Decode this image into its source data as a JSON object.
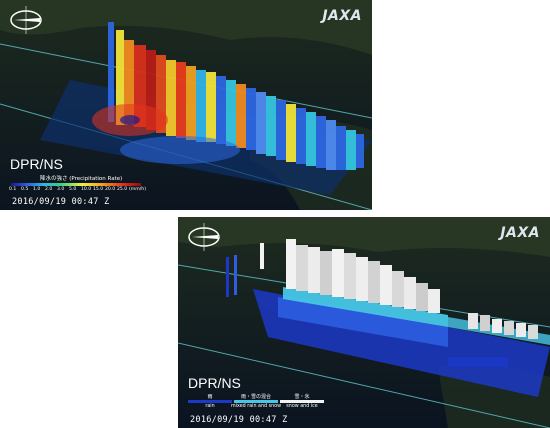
{
  "panels": [
    {
      "product": "DPR/NS",
      "legend_title": "降水の強さ (Precipitation Rate)",
      "ticks": [
        "0.1",
        "0.5",
        "1.0",
        "2.0",
        "3.0",
        "5.0",
        "10.0",
        "15.0",
        "20.0",
        "25.0",
        "(mm/h)"
      ],
      "timestamp": "2016/09/19 00:47 Z",
      "logo": "JAXA"
    },
    {
      "product": "DPR/NS",
      "categories": [
        {
          "top": "雨",
          "bottom": "rain",
          "color": "#1c38c8"
        },
        {
          "top": "雨・雪の混合",
          "bottom": "mixed rain and snow",
          "color": "#47c7e8"
        },
        {
          "top": "雪・氷",
          "bottom": "snow and ice",
          "color": "#f2f2f2"
        }
      ],
      "timestamp": "2016/09/19 00:47 Z",
      "logo": "JAXA"
    }
  ]
}
